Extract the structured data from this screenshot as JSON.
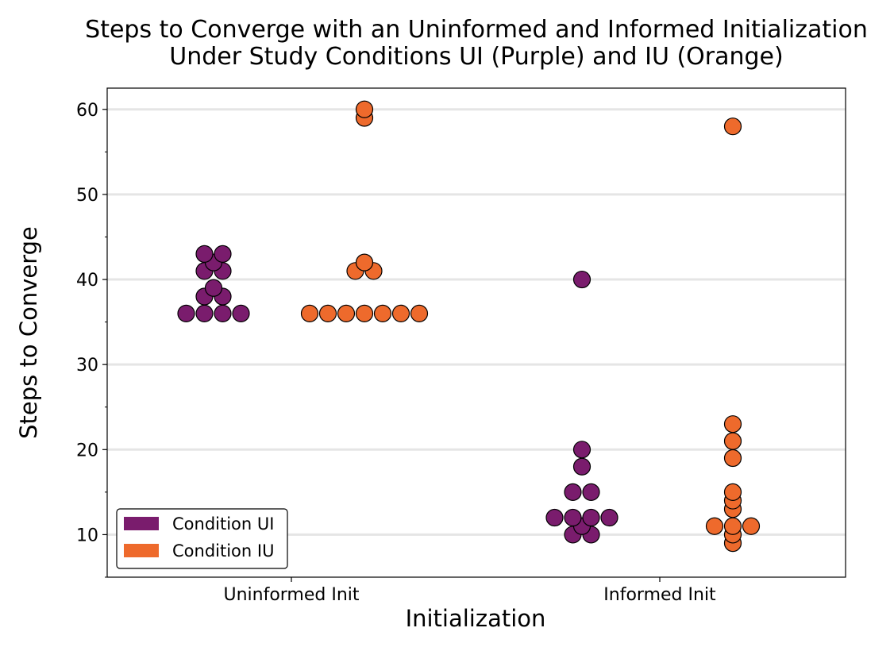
{
  "chart_data": {
    "type": "scatter",
    "subtype": "swarm",
    "title_lines": [
      "Steps to Converge with an Uninformed and Informed Initialization",
      "Under Study Conditions UI (Purple) and IU (Orange)"
    ],
    "xlabel": "Initialization",
    "ylabel": "Steps to Converge",
    "categories": [
      "Uninformed Init",
      "Informed Init"
    ],
    "ylim": [
      5,
      62.5
    ],
    "yticks": [
      10,
      20,
      30,
      40,
      50,
      60
    ],
    "yticks_minor": [
      5,
      15,
      25,
      35,
      45,
      55
    ],
    "grid": "horizontal",
    "legend_position": "bottom-left",
    "series": [
      {
        "name": "Condition UI",
        "color": "#7a1c6d",
        "values_by_category": [
          [
            36,
            36,
            36,
            36,
            38,
            38,
            39,
            41,
            41,
            42,
            43,
            43
          ],
          [
            10,
            10,
            11,
            12,
            12,
            12,
            12,
            15,
            15,
            18,
            20,
            40
          ]
        ]
      },
      {
        "name": "Condition IU",
        "color": "#ee6a2c",
        "values_by_category": [
          [
            36,
            36,
            36,
            36,
            36,
            36,
            36,
            41,
            41,
            42,
            59,
            60
          ],
          [
            9,
            10,
            11,
            11,
            11,
            13,
            14,
            15,
            19,
            21,
            23,
            58
          ]
        ]
      }
    ]
  }
}
